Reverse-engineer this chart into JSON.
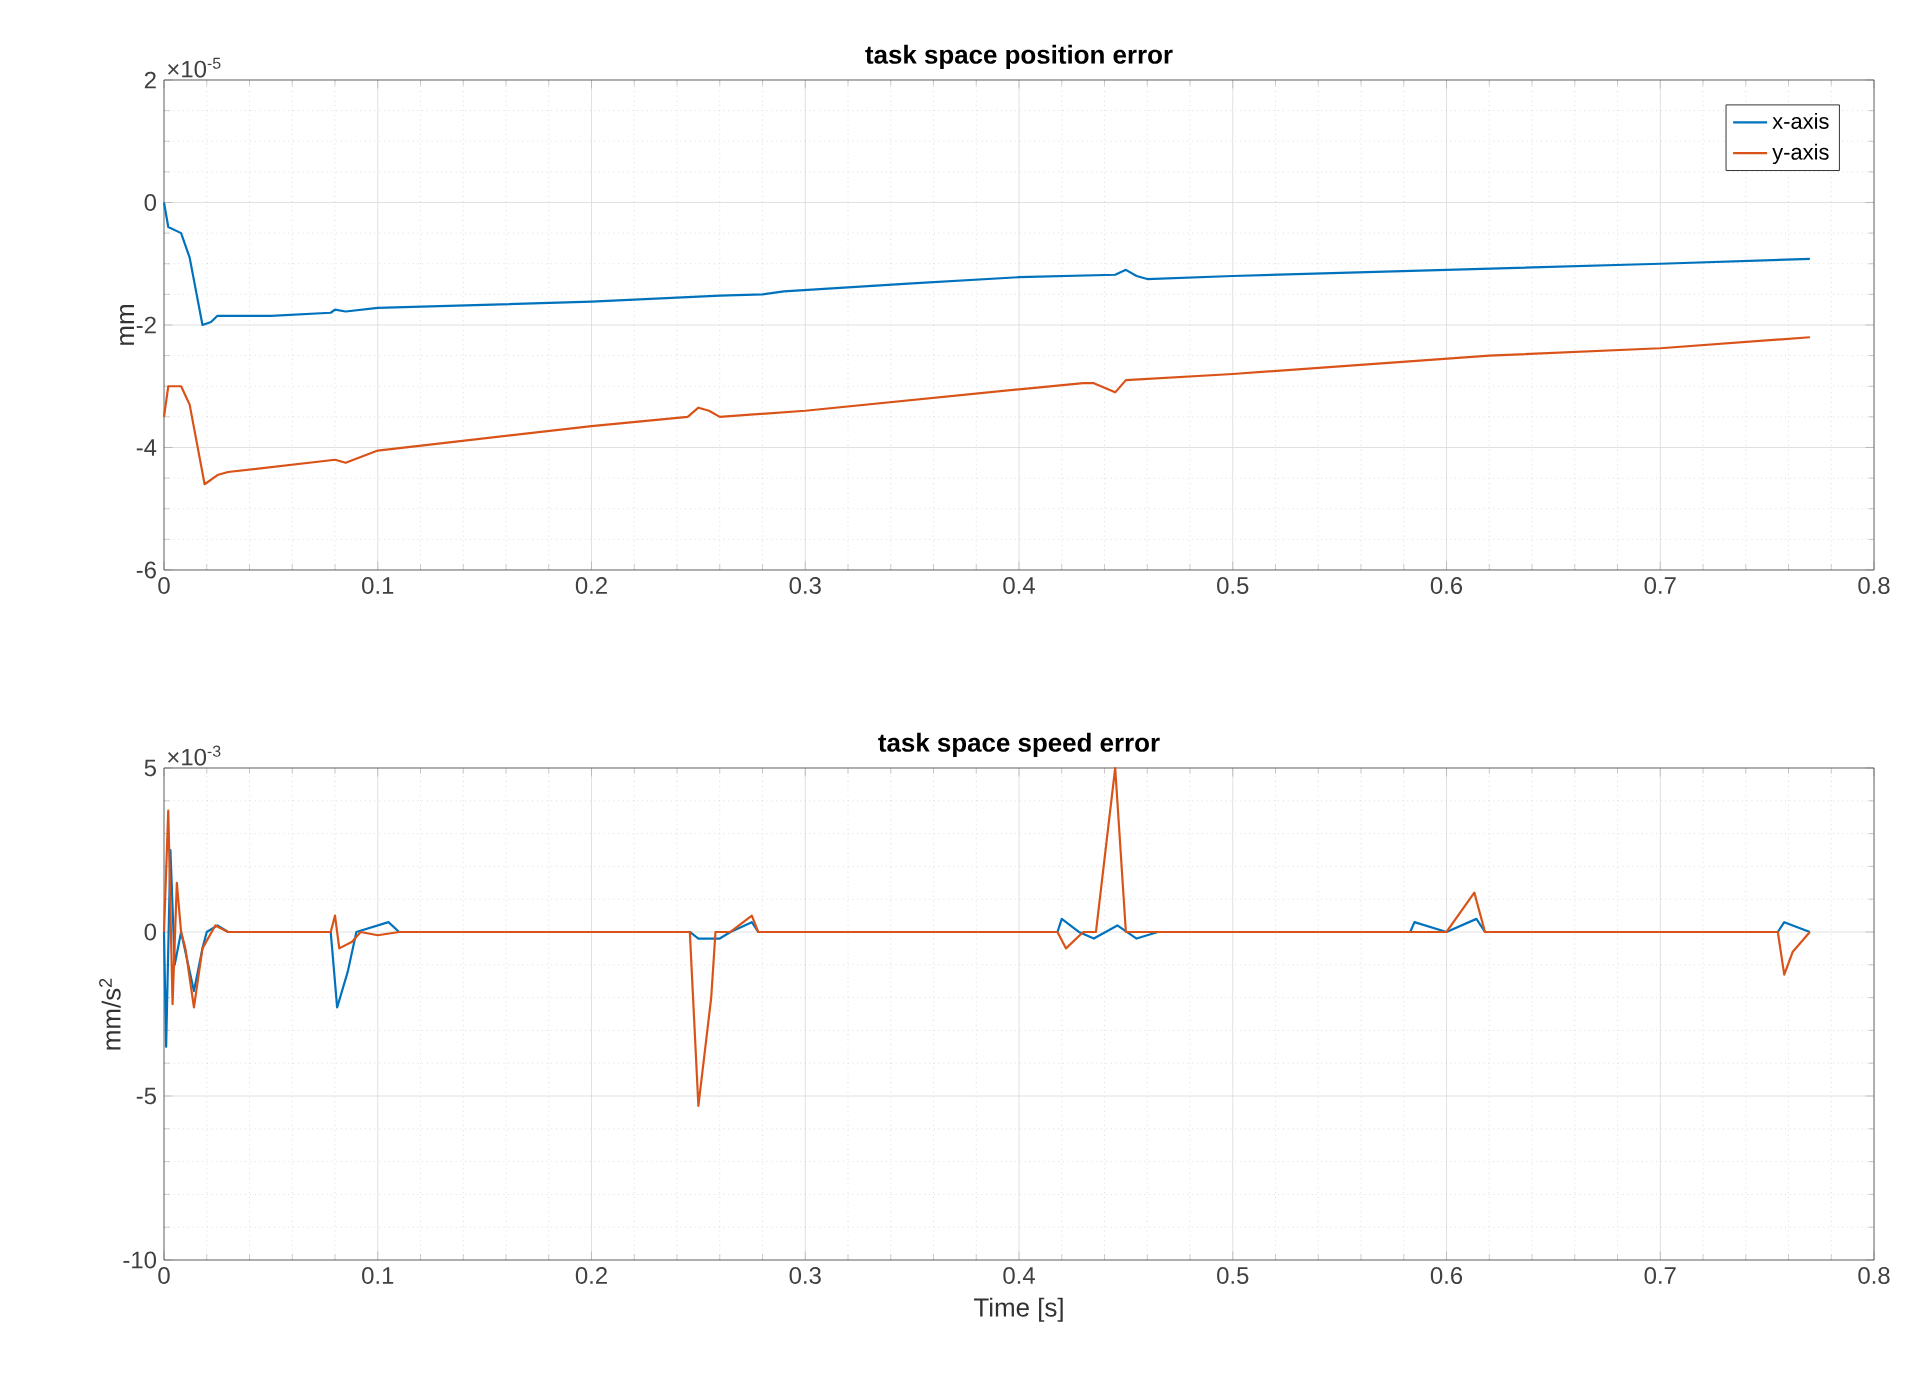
{
  "chart_data": [
    {
      "type": "line",
      "title": "task space position error",
      "ylabel": "mm",
      "annotations": [
        "×10$^{-5}$"
      ],
      "xlim": [
        0,
        0.8
      ],
      "xticks": [
        0,
        0.1,
        0.2,
        0.3,
        0.4,
        0.5,
        0.6,
        0.7,
        0.8
      ],
      "ylim": [
        -6,
        2
      ],
      "yticks": [
        -6,
        -4,
        -2,
        0,
        2
      ],
      "grid": true,
      "legend": "top right",
      "series": [
        {
          "name": "x-axis",
          "color": "#0072bd",
          "x": [
            0,
            0.002,
            0.008,
            0.012,
            0.018,
            0.022,
            0.025,
            0.05,
            0.078,
            0.08,
            0.085,
            0.1,
            0.2,
            0.26,
            0.28,
            0.29,
            0.35,
            0.4,
            0.445,
            0.45,
            0.455,
            0.46,
            0.5,
            0.6,
            0.7,
            0.77
          ],
          "values": [
            0,
            -0.4,
            -0.5,
            -0.9,
            -2.0,
            -1.95,
            -1.85,
            -1.85,
            -1.8,
            -1.75,
            -1.78,
            -1.72,
            -1.62,
            -1.52,
            -1.5,
            -1.45,
            -1.32,
            -1.22,
            -1.18,
            -1.1,
            -1.2,
            -1.25,
            -1.2,
            -1.1,
            -1.0,
            -0.92
          ]
        },
        {
          "name": "y-axis",
          "color": "#d95319",
          "x": [
            0,
            0.002,
            0.008,
            0.012,
            0.019,
            0.025,
            0.03,
            0.08,
            0.085,
            0.1,
            0.2,
            0.245,
            0.25,
            0.255,
            0.26,
            0.3,
            0.4,
            0.43,
            0.435,
            0.445,
            0.45,
            0.5,
            0.6,
            0.62,
            0.7,
            0.77
          ],
          "values": [
            -3.5,
            -3.0,
            -3.0,
            -3.3,
            -4.6,
            -4.45,
            -4.4,
            -4.2,
            -4.25,
            -4.05,
            -3.65,
            -3.5,
            -3.35,
            -3.4,
            -3.5,
            -3.4,
            -3.05,
            -2.95,
            -2.95,
            -3.1,
            -2.9,
            -2.8,
            -2.55,
            -2.5,
            -2.38,
            -2.2
          ]
        }
      ]
    },
    {
      "type": "line",
      "title": "task space speed error",
      "xlabel": "Time [s]",
      "ylabel": "mm/s$^{2}$",
      "annotations": [
        "×10$^{-3}$"
      ],
      "xlim": [
        0,
        0.8
      ],
      "xticks": [
        0,
        0.1,
        0.2,
        0.3,
        0.4,
        0.5,
        0.6,
        0.7,
        0.8
      ],
      "ylim": [
        -10,
        5
      ],
      "yticks": [
        -10,
        -5,
        0,
        5
      ],
      "grid": true,
      "series": [
        {
          "color": "#0072bd",
          "x": [
            0,
            0.001,
            0.003,
            0.005,
            0.008,
            0.014,
            0.018,
            0.02,
            0.025,
            0.03,
            0.078,
            0.081,
            0.086,
            0.09,
            0.105,
            0.11,
            0.246,
            0.25,
            0.26,
            0.265,
            0.275,
            0.278,
            0.418,
            0.42,
            0.428,
            0.435,
            0.446,
            0.455,
            0.465,
            0.583,
            0.585,
            0.6,
            0.614,
            0.618,
            0.755,
            0.758,
            0.77
          ],
          "values": [
            0,
            -3.5,
            2.5,
            -1.0,
            0,
            -1.8,
            -0.5,
            0,
            0.2,
            0,
            0,
            -2.3,
            -1.2,
            0,
            0.3,
            0,
            0,
            -0.2,
            -0.2,
            0,
            0.3,
            0,
            0,
            0.4,
            0,
            -0.2,
            0.2,
            -0.2,
            0,
            0,
            0.3,
            0,
            0.4,
            0,
            0,
            0.3,
            0
          ]
        },
        {
          "color": "#d95319",
          "x": [
            0,
            0.002,
            0.004,
            0.006,
            0.008,
            0.01,
            0.014,
            0.018,
            0.024,
            0.03,
            0.078,
            0.08,
            0.082,
            0.088,
            0.092,
            0.1,
            0.11,
            0.246,
            0.25,
            0.256,
            0.258,
            0.265,
            0.275,
            0.278,
            0.418,
            0.422,
            0.43,
            0.436,
            0.445,
            0.45,
            0.6,
            0.613,
            0.618,
            0.755,
            0.758,
            0.762,
            0.77
          ],
          "values": [
            0,
            3.7,
            -2.2,
            1.5,
            0,
            -0.5,
            -2.3,
            -0.5,
            0.2,
            0,
            0,
            0.5,
            -0.5,
            -0.3,
            0,
            -0.1,
            0,
            0,
            -5.3,
            -2.0,
            0,
            0,
            0.5,
            0,
            0,
            -0.5,
            0,
            0,
            5,
            0,
            0,
            1.2,
            0,
            0,
            -1.3,
            -0.6,
            0
          ]
        }
      ]
    }
  ]
}
